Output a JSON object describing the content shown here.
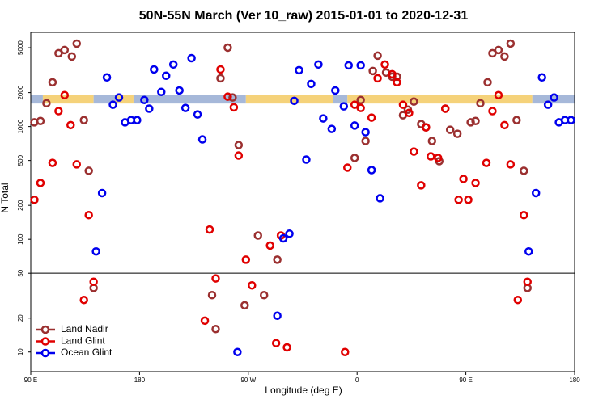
{
  "chart_data": {
    "type": "scatter",
    "title": "50N-55N March (Ver 10_raw)   2015-01-01 to 2020-12-31",
    "xlabel": "Longitude (deg E)",
    "ylabel": "N Total",
    "xlim": [
      90,
      540
    ],
    "xticks": [
      {
        "value": 90,
        "label": "90 E"
      },
      180,
      {
        "value": 270,
        "label": "90 W"
      },
      {
        "value": 360,
        "label": "0"
      },
      {
        "value": 450,
        "label": "90 E"
      },
      {
        "value": 540,
        "label": "180"
      }
    ],
    "ylim": [
      6.7,
      6850
    ],
    "log_y": true,
    "yticks": [
      10,
      20,
      50,
      100,
      200,
      500,
      1000,
      2000,
      5000
    ],
    "hline": 50,
    "legend": "lower-left",
    "bands": [
      {
        "color": "#a6b8d9",
        "xlim": [
          90,
          100
        ],
        "ylim": [
          1600,
          1900
        ]
      },
      {
        "color": "#f5d27a",
        "xlim": [
          100,
          142
        ],
        "ylim": [
          1600,
          1900
        ]
      },
      {
        "color": "#a6b8d9",
        "xlim": [
          142,
          160
        ],
        "ylim": [
          1600,
          1900
        ]
      },
      {
        "color": "#f5d27a",
        "xlim": [
          160,
          175
        ],
        "ylim": [
          1600,
          1900
        ]
      },
      {
        "color": "#a6b8d9",
        "xlim": [
          175,
          268
        ],
        "ylim": [
          1600,
          1900
        ]
      },
      {
        "color": "#f5d27a",
        "xlim": [
          268,
          340
        ],
        "ylim": [
          1600,
          1900
        ]
      },
      {
        "color": "#a6b8d9",
        "xlim": [
          340,
          352
        ],
        "ylim": [
          1600,
          1900
        ]
      },
      {
        "color": "#f5d27a",
        "xlim": [
          352,
          505
        ],
        "ylim": [
          1600,
          1900
        ]
      },
      {
        "color": "#a6b8d9",
        "xlim": [
          505,
          540
        ],
        "ylim": [
          1600,
          1900
        ]
      }
    ],
    "series": [
      {
        "name": "Land Nadir",
        "color": "#9b3030",
        "x": [
          93,
          98,
          103,
          108,
          113,
          118,
          124,
          128,
          134,
          138,
          142,
          240,
          243,
          247,
          253,
          257,
          262,
          267,
          278,
          283,
          294,
          358,
          363,
          367,
          373,
          377,
          384,
          389,
          393,
          398,
          402,
          407,
          413,
          417,
          422,
          428,
          433,
          437,
          443,
          454,
          458,
          462,
          468,
          472,
          477,
          482,
          487,
          492,
          498,
          501
        ],
        "values": [
          1090,
          1120,
          1610,
          2470,
          4470,
          4770,
          4180,
          5440,
          1140,
          405,
          37,
          32,
          16,
          2680,
          5010,
          1810,
          685,
          26,
          108,
          32,
          66,
          527,
          1720,
          744,
          3110,
          4250,
          3010,
          2770,
          2770,
          1260,
          1410,
          1665,
          1051,
          984,
          744,
          493,
          1440,
          936,
          862,
          1090,
          1120,
          1610,
          2470,
          4470,
          4770,
          4180,
          5440,
          1140,
          405,
          37
        ]
      },
      {
        "name": "Land Glint",
        "color": "#e00000",
        "x": [
          93,
          98,
          108,
          113,
          118,
          123,
          128,
          134,
          138,
          142,
          234,
          238,
          243,
          247,
          253,
          258,
          262,
          268,
          273,
          288,
          293,
          297,
          302,
          350,
          352,
          358,
          363,
          372,
          377,
          383,
          389,
          393,
          398,
          403,
          407,
          413,
          417,
          421,
          427,
          433,
          444,
          448,
          452,
          458,
          467,
          472,
          477,
          482,
          487,
          493,
          498,
          501
        ],
        "values": [
          224,
          316,
          476,
          1370,
          1900,
          1030,
          462,
          29,
          164,
          42,
          19,
          122,
          45,
          3210,
          1840,
          1480,
          553,
          66,
          39,
          88,
          12,
          108,
          11,
          10,
          432,
          1560,
          1460,
          1200,
          2680,
          3550,
          2910,
          2470,
          1560,
          1320,
          600,
          301,
          984,
          544,
          527,
          1440,
          224,
          343,
          224,
          316,
          476,
          1370,
          1900,
          1030,
          462,
          29,
          164,
          42
        ]
      },
      {
        "name": "Ocean Glint",
        "color": "#0000ee",
        "x": [
          144,
          149,
          153,
          158,
          163,
          168,
          173,
          178,
          184,
          188,
          192,
          198,
          202,
          208,
          213,
          218,
          223,
          228,
          232,
          261,
          294,
          299,
          304,
          308,
          312,
          318,
          322,
          328,
          332,
          339,
          342,
          349,
          353,
          358,
          363,
          367,
          372,
          379,
          502,
          508,
          513,
          518,
          523,
          527,
          532,
          537
        ],
        "values": [
          78,
          257,
          2730,
          1560,
          1810,
          1090,
          1140,
          1140,
          1720,
          1440,
          3210,
          2030,
          2820,
          3550,
          2090,
          1460,
          4040,
          1280,
          769,
          10,
          21,
          102,
          112,
          1690,
          3160,
          509,
          2390,
          3550,
          1180,
          952,
          2090,
          1510,
          3490,
          1020,
          3490,
          891,
          411,
          231,
          78,
          257,
          2730,
          1560,
          1810,
          1090,
          1140,
          1140
        ]
      }
    ]
  }
}
